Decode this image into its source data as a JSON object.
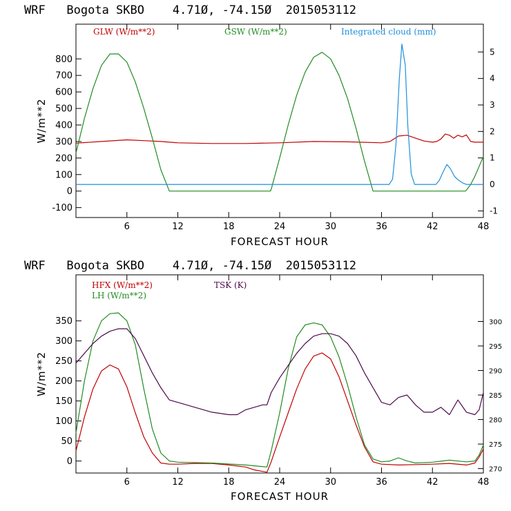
{
  "chart_data": [
    {
      "type": "line",
      "title": "WRF   Bogota SKBO    4.71Ø, -74.15Ø  2015053112",
      "xlabel": "FORECAST HOUR",
      "ylabel": "W/m**2",
      "xlim": [
        0,
        48
      ],
      "ylim": [
        -160,
        1010
      ],
      "y2lim": [
        -1.25,
        6.05
      ],
      "xticks": [
        6,
        12,
        18,
        24,
        30,
        36,
        42,
        48
      ],
      "xtick_labels": [
        "6",
        "12",
        "18",
        "24",
        "30",
        "36",
        "42",
        "48"
      ],
      "yticks": [
        -100,
        0,
        100,
        200,
        300,
        400,
        500,
        600,
        700,
        800
      ],
      "ytick_labels": [
        "-100",
        "0",
        "100",
        "200",
        "300",
        "400",
        "500",
        "600",
        "700",
        "800"
      ],
      "y2ticks": [
        -1,
        0,
        1,
        2,
        3,
        4,
        5
      ],
      "y2tick_labels": [
        "-1",
        "0",
        "1",
        "2",
        "3",
        "4",
        "5"
      ],
      "series": [
        {
          "name": "GLW (W/m**2)",
          "color": "#c00000",
          "axis": "left",
          "x": [
            0,
            3,
            6,
            8,
            10,
            12,
            16,
            20,
            24,
            28,
            32,
            36,
            37,
            38,
            39,
            40,
            41,
            42,
            42.5,
            43,
            43.5,
            44,
            44.5,
            45,
            45.5,
            46,
            46.5,
            47,
            48
          ],
          "y": [
            290,
            300,
            310,
            305,
            300,
            292,
            288,
            288,
            292,
            300,
            298,
            292,
            300,
            333,
            338,
            320,
            303,
            296,
            300,
            315,
            345,
            338,
            320,
            338,
            328,
            340,
            300,
            296,
            296
          ]
        },
        {
          "name": "GSW (W/m**2)",
          "color": "#228b22",
          "axis": "left",
          "x": [
            0,
            1,
            2,
            3,
            4,
            5,
            6,
            7,
            8,
            9,
            10,
            11,
            22.9,
            23,
            24,
            25,
            26,
            27,
            28,
            29,
            30,
            31,
            32,
            33,
            34,
            35,
            45.9,
            46,
            46.5,
            47,
            47.5,
            48
          ],
          "y": [
            230,
            440,
            620,
            760,
            830,
            830,
            780,
            660,
            500,
            320,
            130,
            0,
            0,
            10,
            200,
            400,
            580,
            720,
            810,
            840,
            800,
            700,
            560,
            380,
            180,
            0,
            0,
            5,
            40,
            90,
            150,
            210
          ]
        },
        {
          "name": "Integrated cloud (mm)",
          "color": "#1e8fdc",
          "axis": "right",
          "x": [
            0,
            36.9,
            37.3,
            37.7,
            38.1,
            38.4,
            38.8,
            39.1,
            39.5,
            39.9,
            42.4,
            42.8,
            43.3,
            43.7,
            44.1,
            44.6,
            45.1,
            45.6,
            46,
            48
          ],
          "y": [
            0,
            0,
            0.2,
            1.5,
            4.0,
            5.3,
            4.5,
            2.2,
            0.4,
            0,
            0,
            0.15,
            0.5,
            0.75,
            0.6,
            0.3,
            0.15,
            0.05,
            0,
            0
          ]
        }
      ]
    },
    {
      "type": "line",
      "title": "WRF   Bogota SKBO    4.71Ø, -74.15Ø  2015053112",
      "xlabel": "FORECAST HOUR",
      "ylabel": "W/m**2",
      "xlim": [
        0,
        48
      ],
      "ylim": [
        -30,
        465
      ],
      "y2lim": [
        269.1,
        309.5
      ],
      "xticks": [
        6,
        12,
        18,
        24,
        30,
        36,
        42,
        48
      ],
      "xtick_labels": [
        "6",
        "12",
        "18",
        "24",
        "30",
        "36",
        "42",
        "48"
      ],
      "yticks": [
        0,
        50,
        100,
        150,
        200,
        250,
        300,
        350
      ],
      "ytick_labels": [
        "0",
        "50",
        "100",
        "150",
        "200",
        "250",
        "300",
        "350"
      ],
      "y2ticks": [
        270,
        275,
        280,
        285,
        290,
        295,
        300
      ],
      "y2tick_labels": [
        "270",
        "275",
        "280",
        "285",
        "290",
        "295",
        "300"
      ],
      "series": [
        {
          "name": "HFX (W/m**2)",
          "color": "#c00000",
          "axis": "left",
          "x": [
            0,
            1,
            2,
            3,
            4,
            5,
            6,
            7,
            8,
            9,
            10,
            11,
            12,
            14,
            16,
            18,
            20,
            21,
            22,
            22.5,
            23,
            24,
            25,
            26,
            27,
            28,
            29,
            30,
            31,
            32,
            33,
            34,
            35,
            36,
            38,
            40,
            42,
            44,
            46,
            47,
            47.5,
            48
          ],
          "y": [
            25,
            110,
            180,
            225,
            240,
            230,
            185,
            120,
            60,
            20,
            -5,
            -8,
            -8,
            -6,
            -6,
            -10,
            -15,
            -22,
            -26,
            -28,
            -2,
            60,
            120,
            180,
            230,
            262,
            270,
            255,
            210,
            150,
            90,
            35,
            -2,
            -8,
            -10,
            -9,
            -8,
            -6,
            -10,
            -5,
            10,
            30
          ]
        },
        {
          "name": "LH  (W/m**2)",
          "color": "#228b22",
          "axis": "left",
          "x": [
            0,
            1,
            2,
            3,
            4,
            5,
            6,
            7,
            8,
            9,
            10,
            11,
            12,
            16,
            20,
            22.5,
            23,
            24,
            25,
            26,
            27,
            28,
            29,
            30,
            31,
            32,
            33,
            34,
            35,
            36,
            37,
            38,
            39,
            40,
            42,
            44,
            46,
            47,
            47.5,
            48
          ],
          "y": [
            70,
            200,
            300,
            350,
            368,
            370,
            350,
            290,
            180,
            80,
            20,
            0,
            -3,
            -5,
            -10,
            -15,
            25,
            120,
            230,
            310,
            340,
            345,
            340,
            310,
            260,
            190,
            110,
            40,
            5,
            -2,
            0,
            8,
            0,
            -5,
            -3,
            2,
            -2,
            0,
            15,
            40
          ]
        },
        {
          "name": "TSK (K)",
          "color": "#4b0a4b",
          "axis": "right",
          "x": [
            0,
            1,
            2,
            3,
            4,
            5,
            6,
            7,
            8,
            9,
            10,
            11,
            12,
            14,
            16,
            18,
            19,
            20,
            22,
            22.5,
            23,
            24,
            25,
            26,
            27,
            28,
            29,
            30,
            31,
            32,
            33,
            34,
            35,
            36,
            37,
            38,
            39,
            40,
            41,
            42,
            43,
            44,
            45,
            46,
            47,
            47.5,
            48
          ],
          "y": [
            291.5,
            293.5,
            295.5,
            297,
            298,
            298.5,
            298.5,
            296.5,
            293,
            289.5,
            286.5,
            284,
            283.5,
            282.5,
            281.5,
            281,
            281,
            282,
            283,
            283,
            285.5,
            288.5,
            291,
            293.5,
            295.5,
            297,
            297.5,
            297.5,
            297,
            295.5,
            293,
            289.5,
            286.5,
            283.5,
            283,
            284.5,
            285,
            283,
            281.5,
            281.5,
            282.5,
            281,
            284,
            281.5,
            281,
            282,
            285.5
          ]
        }
      ]
    }
  ]
}
